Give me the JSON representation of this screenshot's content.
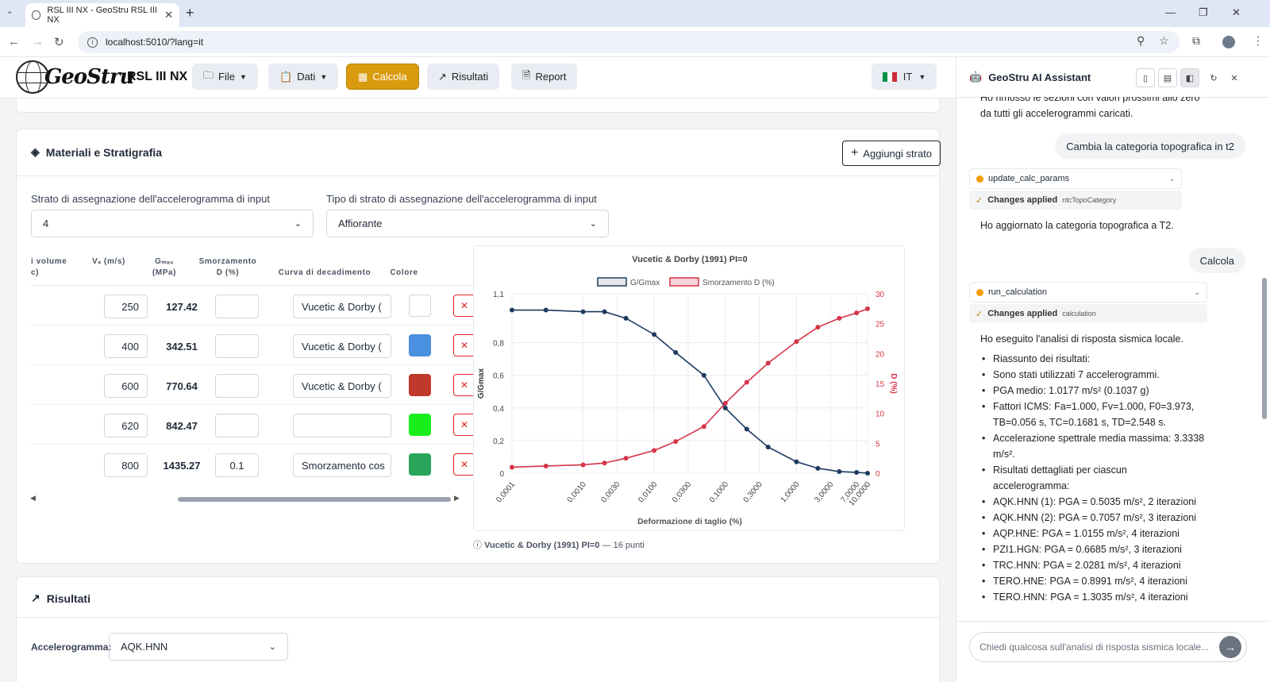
{
  "browser": {
    "tab_title": "RSL III NX - GeoStru RSL III NX",
    "url": "localhost:5010/?lang=it"
  },
  "app": {
    "logo_text": "GeoStru",
    "product": "RSL III NX",
    "menu": [
      {
        "label": "File",
        "icon": "folder-icon"
      },
      {
        "label": "Dati",
        "icon": "clipboard-icon"
      },
      {
        "label": "Calcola",
        "icon": "calculator-icon",
        "active": true
      },
      {
        "label": "Risultati",
        "icon": "chart-line-icon"
      },
      {
        "label": "Report",
        "icon": "document-icon"
      }
    ],
    "lang": "IT",
    "accent": "#d99a0e"
  },
  "materials": {
    "title": "Materiali e Stratigrafia",
    "add_button": "Aggiungi strato",
    "layer_label": "Strato di assegnazione dell'accelerogramma di input",
    "layer_value": "4",
    "type_label": "Tipo di strato di assegnazione dell'accelerogramma di input",
    "type_value": "Affiorante",
    "headers": {
      "vol": "i volume c)",
      "vs": "Vₛ (m/s)",
      "gmax": "Gₘₐₓ (MPa)",
      "damp": "Smorzamento D (%)",
      "curve": "Curva di decadimento",
      "color": "Colore"
    },
    "rows": [
      {
        "vs": "250",
        "gmax": "127.42",
        "damp": "",
        "curve": "Vucetic & Dorby (",
        "color": "#ffffff"
      },
      {
        "vs": "400",
        "gmax": "342.51",
        "damp": "",
        "curve": "Vucetic & Dorby (",
        "color": "#4a8fe0"
      },
      {
        "vs": "600",
        "gmax": "770.64",
        "damp": "",
        "curve": "Vucetic & Dorby (",
        "color": "#c0392b"
      },
      {
        "vs": "620",
        "gmax": "842.47",
        "damp": "",
        "curve": "",
        "color": "#1aee1a"
      },
      {
        "vs": "800",
        "gmax": "1435.27",
        "damp": "0.1",
        "curve": "Smorzamento cos",
        "color": "#28a55a"
      }
    ],
    "delete_glyph": "✕",
    "chart_note_bold": "Vucetic & Dorby (1991) PI=0",
    "chart_note_rest": " — 16 punti"
  },
  "chart_data": {
    "type": "line",
    "title": "Vucetic & Dorby (1991) PI=0",
    "xlabel": "Deformazione di taglio (%)",
    "ylabel": "G/Gmax",
    "y2label": "D (%)",
    "x_scale": "log",
    "x_ticks": [
      "0,0001",
      "0,0010",
      "0,0030",
      "0,0100",
      "0,0300",
      "0,1000",
      "0,3000",
      "1,0000",
      "3,0000",
      "7,0000",
      "10,0000"
    ],
    "y_ticks": [
      "0",
      "0,2",
      "0,4",
      "0,6",
      "0,8",
      "1,1"
    ],
    "y2_ticks": [
      "0",
      "5",
      "10",
      "15",
      "20",
      "25",
      "30"
    ],
    "ylim": [
      0,
      1.1
    ],
    "y2lim": [
      0,
      30
    ],
    "legend_position": "top",
    "grid": true,
    "x": [
      0.0001,
      0.0003,
      0.001,
      0.002,
      0.004,
      0.01,
      0.02,
      0.05,
      0.1,
      0.2,
      0.4,
      1.0,
      2.0,
      4.0,
      7.0,
      10.0
    ],
    "series": [
      {
        "name": "G/Gmax",
        "axis": "left",
        "color": "#1e3a5f",
        "values": [
          1.0,
          1.0,
          0.99,
          0.99,
          0.95,
          0.85,
          0.74,
          0.6,
          0.4,
          0.27,
          0.16,
          0.07,
          0.03,
          0.01,
          0.005,
          0.0
        ]
      },
      {
        "name": "Smorzamento D (%)",
        "axis": "right",
        "color": "#d63447",
        "values": [
          1.0,
          1.2,
          1.4,
          1.7,
          2.5,
          3.8,
          5.3,
          7.8,
          11.7,
          15.2,
          18.4,
          22.0,
          24.4,
          25.9,
          26.8,
          27.5
        ]
      }
    ]
  },
  "results": {
    "title": "Risultati",
    "accel_label": "Accelerogramma:",
    "accel_value": "AQK.HNN"
  },
  "assistant": {
    "title": "GeoStru AI Assistant",
    "msg_top": "Ho rimosso le sezioni con valori prossimi allo zero da tutti gli accelerogrammi caricati.",
    "user1": "Cambia la categoria topografica in t2",
    "tool1": "update_calc_params",
    "applied_label": "Changes applied",
    "tool1_param": "ntcTopoCategory",
    "reply1": "Ho aggiornato la categoria topografica a T2.",
    "user2": "Calcola",
    "tool2": "run_calculation",
    "tool2_param": "calculation",
    "reply2": "Ho eseguito l'analisi di risposta sismica locale.",
    "bullets": [
      "Riassunto dei risultati:",
      "Sono stati utilizzati 7 accelerogrammi.",
      "PGA medio: 1.0177 m/s² (0.1037 g)",
      "Fattori ICMS: Fa=1.000, Fv=1.000, F0=3.973, TB=0.056 s, TC=0.1681 s, TD=2.548 s.",
      "Accelerazione spettrale media massima: 3.3338 m/s².",
      "Risultati dettagliati per ciascun accelerogramma:",
      "AQK.HNN (1): PGA = 0.5035 m/s², 2 iterazioni",
      "AQK.HNN (2): PGA = 0.7057 m/s², 3 iterazioni",
      "AQP.HNE: PGA = 1.0155 m/s², 4 iterazioni",
      "PZI1.HGN: PGA = 0.6685 m/s², 3 iterazioni",
      "TRC.HNN: PGA = 2.0281 m/s², 4 iterazioni",
      "TERO.HNE: PGA = 0.8991 m/s², 4 iterazioni",
      "TERO.HNN: PGA = 1.3035 m/s², 4 iterazioni"
    ],
    "input_placeholder": "Chiedi qualcosa sull'analisi di risposta sismica locale..."
  }
}
